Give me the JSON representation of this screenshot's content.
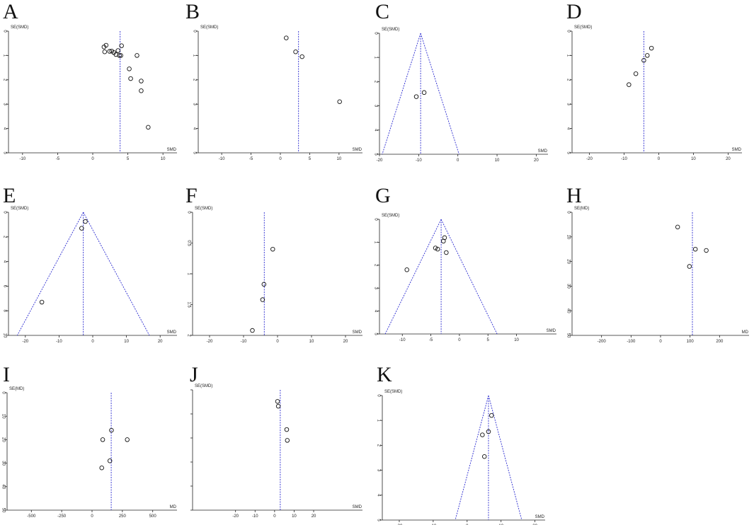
{
  "chart_data": [
    {
      "panel": "A",
      "type": "scatter",
      "ylabel": "SE(SMD)",
      "xlabel": "SMD",
      "xlim": [
        -12,
        12
      ],
      "ylim": [
        0,
        5
      ],
      "xticks": [
        "-10",
        "-5",
        "0",
        "5",
        "10"
      ],
      "xtick_values": [
        -10,
        -5,
        0,
        5,
        10
      ],
      "yticks": [
        "0",
        "1",
        "2",
        "3",
        "4",
        "5"
      ],
      "ytick_values": [
        0,
        1,
        2,
        3,
        4,
        5
      ],
      "pooled_estimate": 3.9,
      "funnel": false,
      "points": [
        {
          "x": 1.6,
          "y": 0.65
        },
        {
          "x": 1.9,
          "y": 0.58
        },
        {
          "x": 1.7,
          "y": 0.85
        },
        {
          "x": 2.4,
          "y": 0.83
        },
        {
          "x": 2.7,
          "y": 0.82
        },
        {
          "x": 3.0,
          "y": 0.88
        },
        {
          "x": 3.3,
          "y": 0.96
        },
        {
          "x": 3.6,
          "y": 0.8
        },
        {
          "x": 3.8,
          "y": 1.0
        },
        {
          "x": 4.1,
          "y": 0.6
        },
        {
          "x": 4.0,
          "y": 1.0
        },
        {
          "x": 6.3,
          "y": 1.0
        },
        {
          "x": 5.2,
          "y": 1.55
        },
        {
          "x": 5.4,
          "y": 1.95
        },
        {
          "x": 6.9,
          "y": 2.05
        },
        {
          "x": 6.9,
          "y": 2.45
        },
        {
          "x": 7.9,
          "y": 3.95
        }
      ]
    },
    {
      "panel": "B",
      "type": "scatter",
      "ylabel": "SE(SMD)",
      "xlabel": "SMD",
      "xlim": [
        -14,
        14
      ],
      "ylim": [
        0,
        5
      ],
      "xticks": [
        "-10",
        "-5",
        "0",
        "5",
        "10"
      ],
      "xtick_values": [
        -10,
        -5,
        0,
        5,
        10
      ],
      "yticks": [
        "0",
        "1",
        "2",
        "3",
        "4",
        "5"
      ],
      "ytick_values": [
        0,
        1,
        2,
        3,
        4,
        5
      ],
      "pooled_estimate": 3.1,
      "funnel": false,
      "points": [
        {
          "x": 1.0,
          "y": 0.28
        },
        {
          "x": 2.6,
          "y": 0.85
        },
        {
          "x": 3.7,
          "y": 1.05
        },
        {
          "x": 10.1,
          "y": 2.9
        }
      ]
    },
    {
      "panel": "C",
      "type": "scatter",
      "ylabel": "SE(SMD)",
      "xlabel": "SMD",
      "xlim": [
        -20,
        23
      ],
      "ylim": [
        0,
        5
      ],
      "xticks": [
        "-20",
        "-10",
        "0",
        "10",
        "20"
      ],
      "xtick_values": [
        -20,
        -10,
        0,
        10,
        20
      ],
      "yticks": [
        "0",
        "1",
        "2",
        "3",
        "4",
        "5"
      ],
      "ytick_values": [
        0,
        1,
        2,
        3,
        4,
        5
      ],
      "pooled_estimate": -9.5,
      "funnel": true,
      "points": [
        {
          "x": -8.6,
          "y": 2.45
        },
        {
          "x": -10.6,
          "y": 2.62
        }
      ]
    },
    {
      "panel": "D",
      "type": "scatter",
      "ylabel": "SE(SMD)",
      "xlabel": "SMD",
      "xlim": [
        -25,
        24
      ],
      "ylim": [
        0,
        5
      ],
      "xticks": [
        "-20",
        "-10",
        "0",
        "10",
        "20"
      ],
      "xtick_values": [
        -20,
        -10,
        0,
        10,
        20
      ],
      "yticks": [
        "0",
        "1",
        "2",
        "3",
        "4",
        "5"
      ],
      "ytick_values": [
        0,
        1,
        2,
        3,
        4,
        5
      ],
      "pooled_estimate": -4.3,
      "funnel": false,
      "points": [
        {
          "x": -2.1,
          "y": 0.7
        },
        {
          "x": -3.3,
          "y": 1.0
        },
        {
          "x": -4.3,
          "y": 1.2
        },
        {
          "x": -6.6,
          "y": 1.75
        },
        {
          "x": -8.6,
          "y": 2.2
        }
      ]
    },
    {
      "panel": "E",
      "type": "scatter",
      "ylabel": "SE(SMD)",
      "xlabel": "SMD",
      "xlim": [
        -25,
        25
      ],
      "ylim": [
        0,
        10
      ],
      "xticks": [
        "-20",
        "-10",
        "0",
        "10",
        "20"
      ],
      "xtick_values": [
        -20,
        -10,
        0,
        10,
        20
      ],
      "yticks": [
        "0",
        "2",
        "4",
        "6",
        "8",
        "10"
      ],
      "ytick_values": [
        0,
        2,
        4,
        6,
        8,
        10
      ],
      "pooled_estimate": -2.8,
      "funnel": true,
      "points": [
        {
          "x": -2.2,
          "y": 0.75
        },
        {
          "x": -3.3,
          "y": 1.3
        },
        {
          "x": -15.1,
          "y": 7.3
        }
      ]
    },
    {
      "panel": "F",
      "type": "scatter",
      "ylabel": "SE(SMD)",
      "xlabel": "SMD",
      "xlim": [
        -25,
        25
      ],
      "ylim": [
        0,
        2
      ],
      "xticks": [
        "-20",
        "-10",
        "0",
        "10",
        "20"
      ],
      "xtick_values": [
        -20,
        -10,
        0,
        10,
        20
      ],
      "yticks": [
        "0",
        "0.5",
        "1",
        "1.5",
        "2"
      ],
      "ytick_values": [
        0,
        0.5,
        1,
        1.5,
        2
      ],
      "pooled_estimate": -3.9,
      "funnel": false,
      "points": [
        {
          "x": -1.4,
          "y": 0.6
        },
        {
          "x": -4.0,
          "y": 1.17
        },
        {
          "x": -4.4,
          "y": 1.42
        },
        {
          "x": -7.4,
          "y": 1.92
        }
      ]
    },
    {
      "panel": "G",
      "type": "scatter",
      "ylabel": "SE(SMD)",
      "xlabel": "SMD",
      "xlim": [
        -14,
        17
      ],
      "ylim": [
        0,
        5
      ],
      "xticks": [
        "-10",
        "-5",
        "0",
        "5",
        "10"
      ],
      "xtick_values": [
        -10,
        -5,
        0,
        5,
        10
      ],
      "yticks": [
        "0",
        "1",
        "2",
        "3",
        "4",
        "5"
      ],
      "ytick_values": [
        0,
        1,
        2,
        3,
        4,
        5
      ],
      "pooled_estimate": -3.2,
      "funnel": true,
      "points": [
        {
          "x": -2.6,
          "y": 0.8
        },
        {
          "x": -2.8,
          "y": 0.95
        },
        {
          "x": -4.2,
          "y": 1.25
        },
        {
          "x": -3.8,
          "y": 1.3
        },
        {
          "x": -2.3,
          "y": 1.45
        },
        {
          "x": -9.2,
          "y": 2.2
        }
      ]
    },
    {
      "panel": "H",
      "type": "scatter",
      "ylabel": "SE(MD)",
      "xlabel": "MD",
      "xlim": [
        -300,
        300
      ],
      "ylim": [
        0,
        50
      ],
      "xticks": [
        "-200",
        "-100",
        "0",
        "100",
        "200"
      ],
      "xtick_values": [
        -200,
        -100,
        0,
        100,
        200
      ],
      "yticks": [
        "0",
        "10",
        "20",
        "30",
        "40",
        "50"
      ],
      "ytick_values": [
        0,
        10,
        20,
        30,
        40,
        50
      ],
      "pooled_estimate": 108,
      "funnel": false,
      "points": [
        {
          "x": 58,
          "y": 6
        },
        {
          "x": 118,
          "y": 15
        },
        {
          "x": 155,
          "y": 15.5
        },
        {
          "x": 98,
          "y": 22
        }
      ]
    },
    {
      "panel": "I",
      "type": "scatter",
      "ylabel": "SE(MD)",
      "xlabel": "MD",
      "xlim": [
        -700,
        700
      ],
      "ylim": [
        0,
        50
      ],
      "xticks": [
        "-500",
        "-250",
        "0",
        "250",
        "500"
      ],
      "xtick_values": [
        -500,
        -250,
        0,
        250,
        500
      ],
      "yticks": [
        "0",
        "10",
        "20",
        "30",
        "40",
        "50"
      ],
      "ytick_values": [
        0,
        10,
        20,
        30,
        40,
        50
      ],
      "pooled_estimate": 158,
      "funnel": false,
      "points": [
        {
          "x": 160,
          "y": 16
        },
        {
          "x": 88,
          "y": 20
        },
        {
          "x": 290,
          "y": 20
        },
        {
          "x": 147,
          "y": 29
        },
        {
          "x": 80,
          "y": 32
        }
      ]
    },
    {
      "panel": "J",
      "type": "scatter",
      "ylabel": "SE(SMD)",
      "xlabel": "SMD",
      "xlim": [
        -42,
        45
      ],
      "ylim": [
        0,
        5
      ],
      "xticks": [
        "-20",
        "-10",
        "0",
        "10",
        "20"
      ],
      "xtick_values": [
        -20,
        -10,
        0,
        10,
        20
      ],
      "yticks": [],
      "ytick_values": [
        0,
        1,
        2,
        3,
        4,
        5
      ],
      "pooled_estimate": 2.9,
      "funnel": false,
      "points": [
        {
          "x": 1.5,
          "y": 0.48
        },
        {
          "x": 1.9,
          "y": 0.68
        },
        {
          "x": 6.2,
          "y": 1.65
        },
        {
          "x": 6.5,
          "y": 2.1
        }
      ]
    },
    {
      "panel": "K",
      "type": "scatter",
      "ylabel": "SE(SMD)",
      "xlabel": "SMD",
      "xlim": [
        -25,
        23
      ],
      "ylim": [
        0,
        5
      ],
      "xticks": [
        "-20",
        "-10",
        "0",
        "10",
        "20"
      ],
      "xtick_values": [
        -20,
        -10,
        0,
        10,
        20
      ],
      "yticks": [
        "0",
        "1",
        "2",
        "3",
        "4",
        "5"
      ],
      "ytick_values": [
        0,
        1,
        2,
        3,
        4,
        5
      ],
      "pooled_estimate": 6.3,
      "funnel": true,
      "points": [
        {
          "x": 7.2,
          "y": 0.8
        },
        {
          "x": 6.3,
          "y": 1.45
        },
        {
          "x": 4.5,
          "y": 1.58
        },
        {
          "x": 5.1,
          "y": 2.45
        }
      ]
    }
  ]
}
